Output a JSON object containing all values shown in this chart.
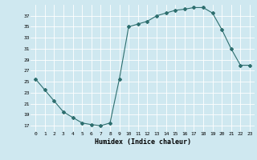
{
  "x": [
    0,
    1,
    2,
    3,
    4,
    5,
    6,
    7,
    8,
    9,
    10,
    11,
    12,
    13,
    14,
    15,
    16,
    17,
    18,
    19,
    20,
    21,
    22,
    23
  ],
  "y": [
    25.5,
    23.5,
    21.5,
    19.5,
    18.5,
    17.5,
    17.2,
    17.0,
    17.5,
    25.5,
    35.0,
    35.5,
    36.0,
    37.0,
    37.5,
    38.0,
    38.2,
    38.5,
    38.5,
    37.5,
    34.5,
    31.0,
    28.0,
    28.0
  ],
  "line_color": "#2d6e6e",
  "marker": "D",
  "marker_size": 2.0,
  "bg_color": "#cfe8f0",
  "grid_color": "#ffffff",
  "xlabel": "Humidex (Indice chaleur)",
  "yticks": [
    17,
    19,
    21,
    23,
    25,
    27,
    29,
    31,
    33,
    35,
    37
  ],
  "xticks": [
    0,
    1,
    2,
    3,
    4,
    5,
    6,
    7,
    8,
    9,
    10,
    11,
    12,
    13,
    14,
    15,
    16,
    17,
    18,
    19,
    20,
    21,
    22,
    23
  ],
  "xlim": [
    -0.5,
    23.5
  ],
  "ylim": [
    16.0,
    39.0
  ]
}
